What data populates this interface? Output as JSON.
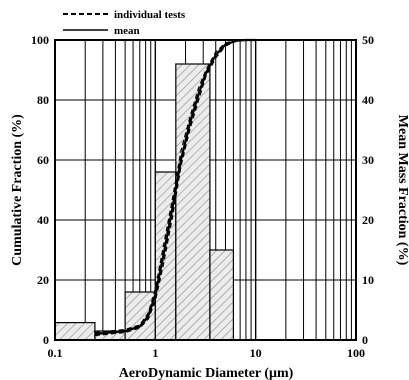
{
  "chart_data": {
    "type": "histogram-line",
    "xlabel": "AeroDynamic Diameter (μm)",
    "ylabel_left": "Cumulative Fraction (%)",
    "ylabel_right": "Mean Mass Fraction (%)",
    "x_scale": "log",
    "xlim": [
      0.1,
      100
    ],
    "ylim_left": [
      0,
      100
    ],
    "ylim_right": [
      0,
      50
    ],
    "x_ticks": [
      "0.1",
      "1",
      "10",
      "100"
    ],
    "y_ticks_left": [
      "0",
      "20",
      "40",
      "60",
      "80",
      "100"
    ],
    "y_ticks_right": [
      "0",
      "10",
      "20",
      "30",
      "40",
      "50"
    ],
    "grid": true,
    "legend_position": "top-left",
    "legend": [
      {
        "label": "individual tests",
        "style": "dashed"
      },
      {
        "label": "mean",
        "style": "solid"
      }
    ],
    "histogram": {
      "axis": "right",
      "bins": [
        {
          "x0": 0.1,
          "x1": 0.25,
          "value": 2.9
        },
        {
          "x0": 0.25,
          "x1": 0.5,
          "value": 1.5
        },
        {
          "x0": 0.5,
          "x1": 1.0,
          "value": 8.0
        },
        {
          "x0": 1.0,
          "x1": 1.6,
          "value": 28.0
        },
        {
          "x0": 1.6,
          "x1": 3.5,
          "value": 46.0
        },
        {
          "x0": 3.5,
          "x1": 6.0,
          "value": 15.0
        }
      ]
    },
    "series": [
      {
        "name": "mean",
        "axis": "left",
        "style": "solid",
        "x": [
          0.25,
          0.35,
          0.5,
          0.7,
          0.85,
          1.0,
          1.2,
          1.5,
          1.8,
          2.2,
          2.7,
          3.2,
          4.0,
          5.0,
          6.5,
          8.0,
          10.0
        ],
        "y": [
          2,
          2.5,
          3,
          4.5,
          8,
          15,
          28,
          45,
          60,
          72,
          82,
          89,
          95,
          98.5,
          99.8,
          100,
          100
        ]
      },
      {
        "name": "individual tests",
        "axis": "left",
        "style": "dashed",
        "x": [
          0.25,
          0.35,
          0.5,
          0.7,
          0.85,
          1.0,
          1.2,
          1.5,
          1.8,
          2.2,
          2.7,
          3.2,
          4.0,
          5.0,
          6.5,
          8.0,
          10.0,
          15.0,
          25.0
        ],
        "y": [
          1.5,
          2,
          2.5,
          4,
          7,
          13,
          25,
          42,
          58,
          70,
          80,
          88,
          94,
          98,
          99.7,
          100,
          100,
          100,
          100
        ]
      },
      {
        "name": "individual tests",
        "axis": "left",
        "style": "dashed",
        "x": [
          0.25,
          0.35,
          0.5,
          0.7,
          0.85,
          1.0,
          1.2,
          1.5,
          1.8,
          2.2,
          2.7,
          3.2,
          4.0,
          5.0,
          6.5,
          8.0,
          10.0
        ],
        "y": [
          2.5,
          3,
          3.5,
          5,
          9,
          17,
          31,
          48,
          63,
          74,
          84,
          90,
          96,
          99,
          100,
          100,
          100
        ]
      }
    ]
  }
}
